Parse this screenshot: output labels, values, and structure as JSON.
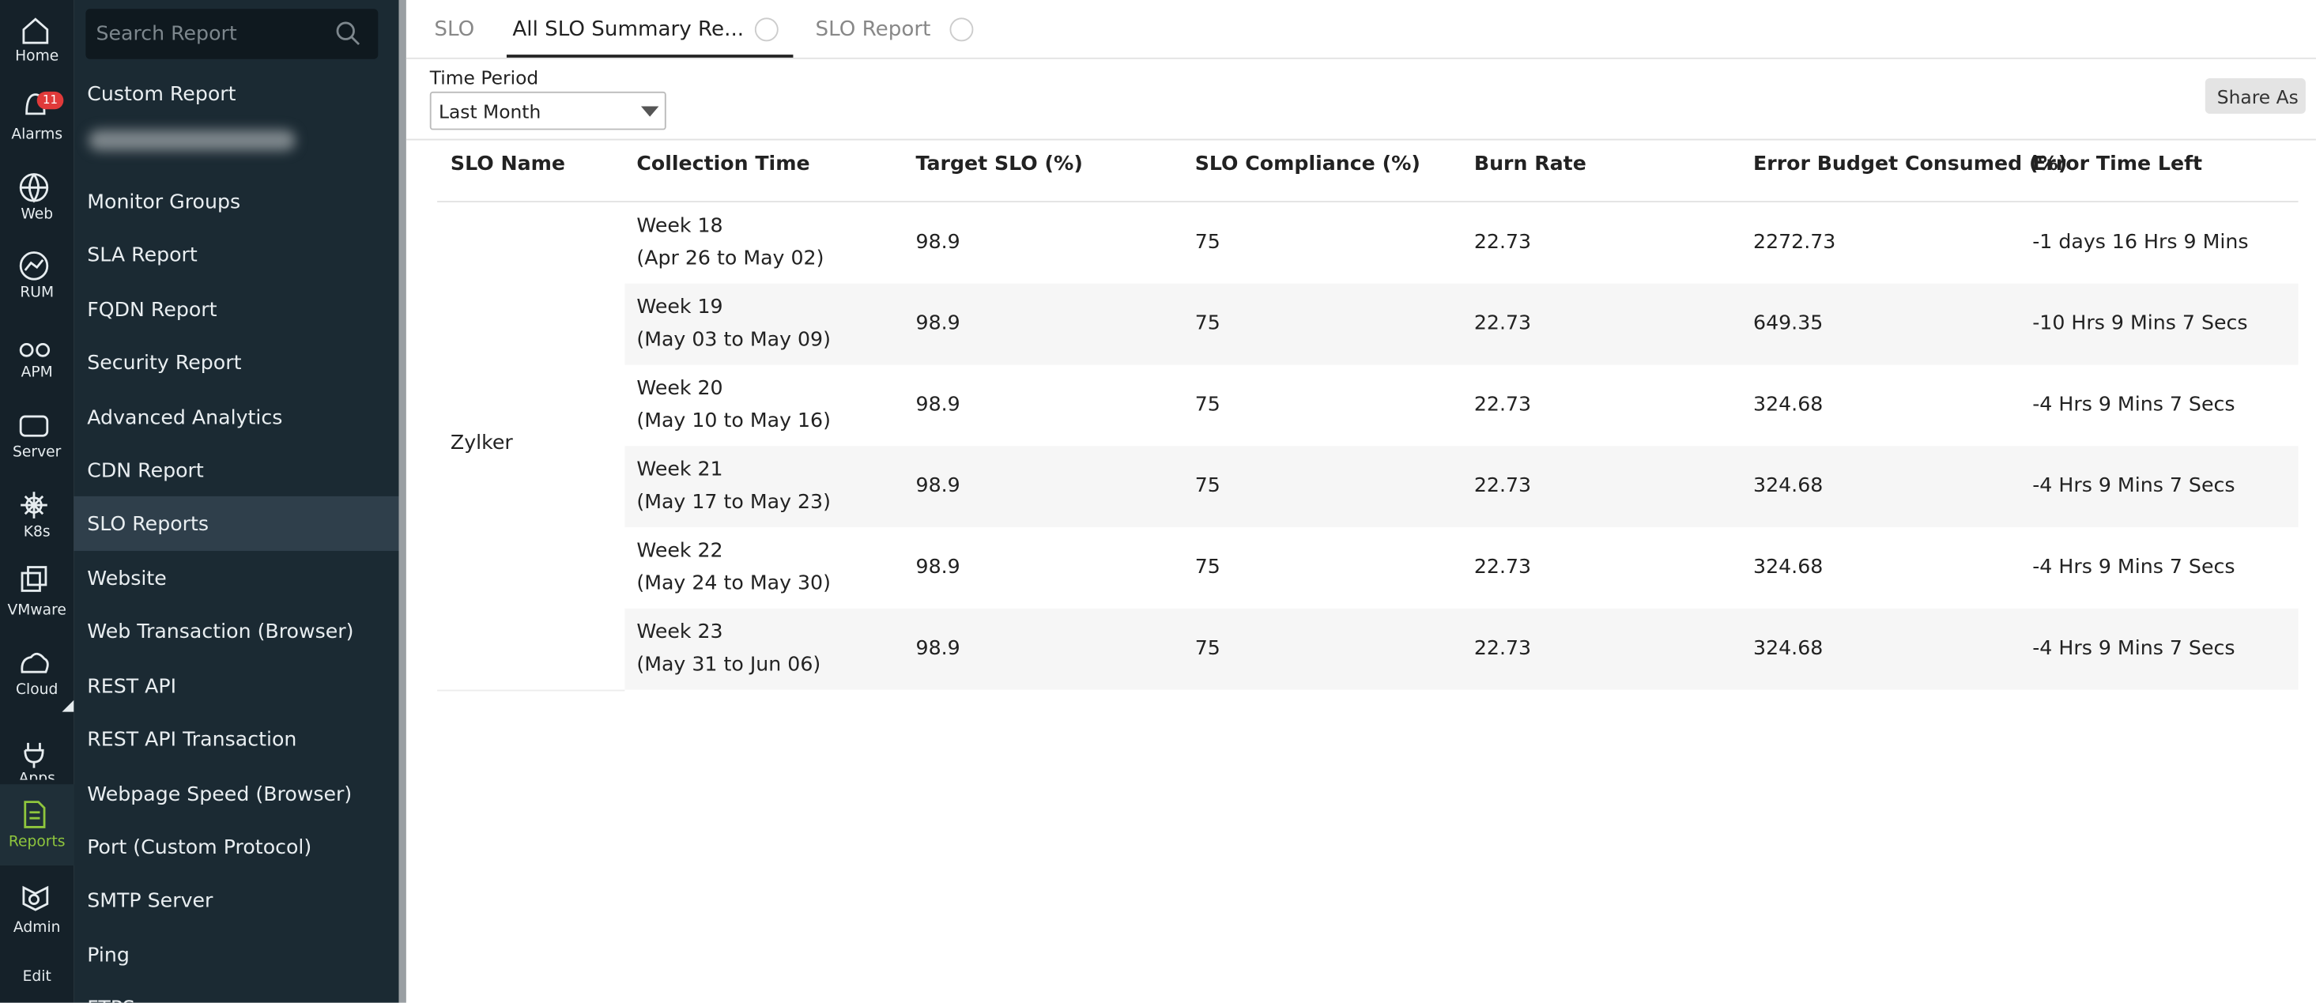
{
  "nav": {
    "items": [
      "Home",
      "Alarms",
      "Web",
      "RUM",
      "APM",
      "Server",
      "K8s",
      "VMware",
      "Cloud",
      "Apps",
      "Reports",
      "Admin",
      "Edit"
    ],
    "alarm_badge": "11"
  },
  "sidebar": {
    "search_placeholder": "Search Report",
    "items": [
      "Custom Report",
      "Monitor Groups",
      "SLA Report",
      "FQDN Report",
      "Security Report",
      "Advanced Analytics",
      "CDN Report",
      "SLO Reports",
      "Website",
      "Web Transaction (Browser)",
      "REST API",
      "REST API Transaction",
      "Webpage Speed (Browser)",
      "Port (Custom Protocol)",
      "SMTP Server",
      "Ping",
      "FTPS"
    ]
  },
  "tabs": [
    "SLO",
    "All SLO Summary Re...",
    "SLO Report"
  ],
  "filter": {
    "label": "Time Period",
    "value": "Last Month"
  },
  "share_button": "Share As",
  "table": {
    "headers": [
      "SLO Name",
      "Collection Time",
      "Target SLO (%)",
      "SLO Compliance (%)",
      "Burn Rate",
      "Error Budget Consumed (%)",
      "Error Time Left"
    ],
    "slo_name": "Zylker",
    "rows": [
      [
        [
          "Week 18",
          "(Apr 26 to May 02)"
        ],
        "98.9",
        "75",
        "22.73",
        "2272.73",
        "-1 days 16 Hrs 9 Mins"
      ],
      [
        [
          "Week 19",
          "(May 03 to May 09)"
        ],
        "98.9",
        "75",
        "22.73",
        "649.35",
        "-10 Hrs 9 Mins 7 Secs"
      ],
      [
        [
          "Week 20",
          "(May 10 to May 16)"
        ],
        "98.9",
        "75",
        "22.73",
        "324.68",
        "-4 Hrs 9 Mins 7 Secs"
      ],
      [
        [
          "Week 21",
          "(May 17 to May 23)"
        ],
        "98.9",
        "75",
        "22.73",
        "324.68",
        "-4 Hrs 9 Mins 7 Secs"
      ],
      [
        [
          "Week 22",
          "(May 24 to May 30)"
        ],
        "98.9",
        "75",
        "22.73",
        "324.68",
        "-4 Hrs 9 Mins 7 Secs"
      ],
      [
        [
          "Week 23",
          "(May 31 to Jun 06)"
        ],
        "98.9",
        "75",
        "22.73",
        "324.68",
        "-4 Hrs 9 Mins 7 Secs"
      ]
    ]
  }
}
